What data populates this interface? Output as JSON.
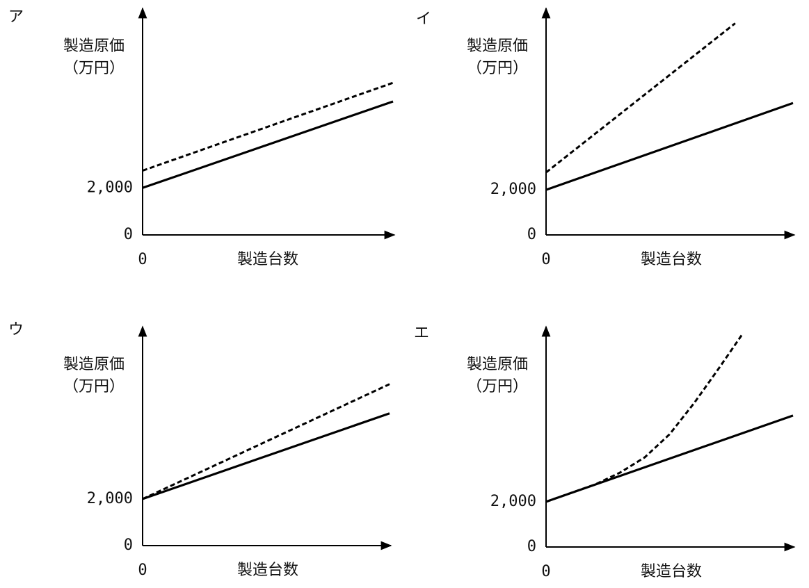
{
  "chart_data": [
    {
      "type": "line",
      "title": "ア",
      "ylabel": [
        "製造原価",
        "（万円）"
      ],
      "xlabel": "製造台数",
      "xlim": [
        0,
        10
      ],
      "xticks": [
        0
      ],
      "ylim": [
        0,
        9400
      ],
      "yticks": [
        0,
        {
          "value": 2000,
          "label": "2,000"
        }
      ],
      "grid": false,
      "series": [
        {
          "color": "#000000",
          "dash": false,
          "x": [
            0,
            10
          ],
          "values": [
            2000,
            5676
          ]
        },
        {
          "color": "#000000",
          "dash": true,
          "x": [
            0,
            10
          ],
          "values": [
            2735,
            6470
          ]
        }
      ]
    },
    {
      "type": "line",
      "title": "イ",
      "ylabel": [
        "製造原価",
        "（万円）"
      ],
      "xlabel": "製造台数",
      "xlim": [
        0,
        10
      ],
      "xticks": [
        0
      ],
      "ylim": [
        0,
        9800
      ],
      "yticks": [
        0,
        {
          "value": 2000,
          "label": "2,000"
        }
      ],
      "grid": false,
      "series": [
        {
          "color": "#000000",
          "dash": false,
          "x": [
            0,
            10
          ],
          "values": [
            2000,
            5846
          ]
        },
        {
          "color": "#000000",
          "dash": true,
          "x": [
            0,
            7.66
          ],
          "values": [
            2769,
            9385
          ]
        }
      ]
    },
    {
      "type": "line",
      "title": "ウ",
      "ylabel": [
        "製造原価",
        "（万円）"
      ],
      "xlabel": "製造台数",
      "xlim": [
        0,
        10
      ],
      "xticks": [
        0
      ],
      "ylim": [
        0,
        9150
      ],
      "yticks": [
        0,
        {
          "value": 2000,
          "label": "2,000"
        }
      ],
      "grid": false,
      "series": [
        {
          "color": "#000000",
          "dash": false,
          "x": [
            0,
            10
          ],
          "values": [
            2000,
            5672
          ]
        },
        {
          "color": "#000000",
          "dash": true,
          "x": [
            0,
            10
          ],
          "values": [
            2000,
            6925
          ]
        }
      ]
    },
    {
      "type": "line",
      "title": "エ",
      "ylabel": [
        "製造原価",
        "（万円）"
      ],
      "xlabel": "製造台数",
      "xlim": [
        0,
        10
      ],
      "xticks": [
        0
      ],
      "ylim": [
        0,
        9500
      ],
      "yticks": [
        0,
        {
          "value": 2000,
          "label": "2,000"
        }
      ],
      "grid": false,
      "series": [
        {
          "color": "#000000",
          "dash": false,
          "x": [
            0,
            10
          ],
          "values": [
            2000,
            5815
          ]
        },
        {
          "color": "#000000",
          "dash": true,
          "x": [
            0,
            1,
            2,
            3,
            4,
            5,
            6,
            7,
            7.97
          ],
          "values": [
            2000,
            2390,
            2769,
            3292,
            3969,
            4985,
            6369,
            7908,
            9446
          ]
        }
      ]
    }
  ]
}
